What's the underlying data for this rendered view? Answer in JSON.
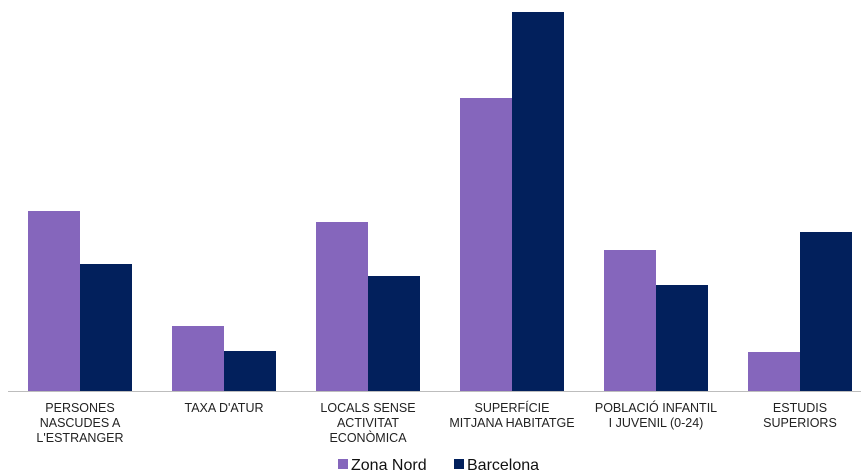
{
  "chart_data": {
    "type": "bar",
    "categories": [
      [
        "PERSONES",
        "NASCUDES A",
        "L'ESTRANGER"
      ],
      [
        "TAXA D'ATUR"
      ],
      [
        "LOCALS SENSE",
        "ACTIVITAT",
        "ECONÒMICA"
      ],
      [
        "SUPERFÍCIE",
        "MITJANA HABITATGE"
      ],
      [
        "POBLACIÓ INFANTIL",
        "I JUVENIL (0-24)"
      ],
      [
        "ESTUDIS",
        "SUPERIORS"
      ]
    ],
    "series": [
      {
        "name": "Zona Nord",
        "color": "#8566BC",
        "values": [
          180,
          65,
          169,
          293,
          141,
          39
        ]
      },
      {
        "name": "Barcelona",
        "color": "#02205C",
        "values": [
          127,
          40,
          115,
          379,
          106,
          159
        ]
      }
    ],
    "ylim": [
      0,
      379
    ],
    "grid": false,
    "legend_position": "bottom",
    "axis_color": "#BDBDBD"
  }
}
